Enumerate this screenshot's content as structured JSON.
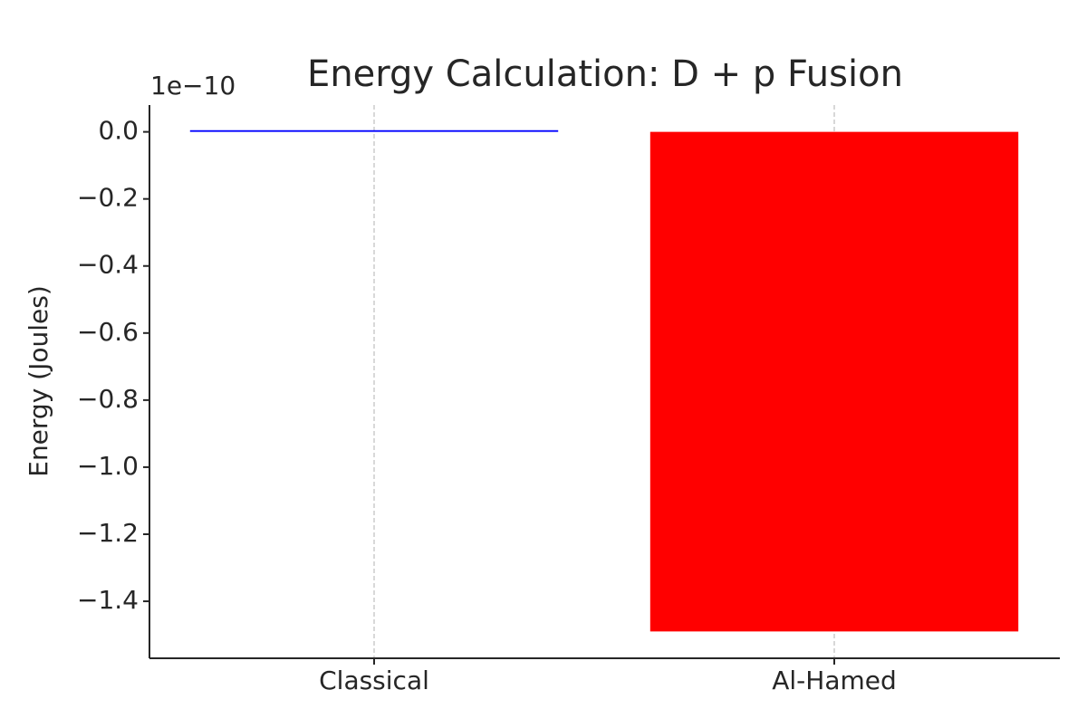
{
  "chart_data": {
    "type": "bar",
    "title": "Energy Calculation: D + p Fusion",
    "ylabel": "Energy (Joules)",
    "y_offset_label": "1e−10",
    "categories": [
      "Classical",
      "Al-Hamed"
    ],
    "values": [
      0.005,
      -1.49
    ],
    "colors": [
      "blue",
      "red"
    ],
    "ylim": [
      -1.57,
      0.08
    ],
    "yticks": [
      {
        "value": 0,
        "label": "0.0"
      },
      {
        "value": -0.2,
        "label": "−0.2"
      },
      {
        "value": -0.4,
        "label": "−0.4"
      },
      {
        "value": -0.6,
        "label": "−0.6"
      },
      {
        "value": -0.8,
        "label": "−0.8"
      },
      {
        "value": -1.0,
        "label": "−1.0"
      },
      {
        "value": -1.2,
        "label": "−1.2"
      },
      {
        "value": -1.4,
        "label": "−1.4"
      }
    ],
    "grid": "x"
  }
}
